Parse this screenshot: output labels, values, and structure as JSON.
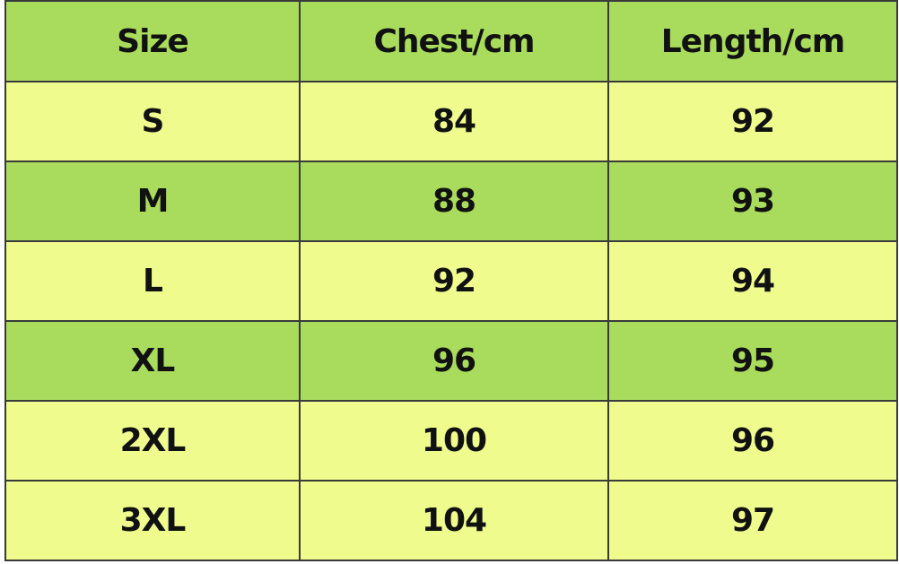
{
  "table": {
    "header": [
      "Size",
      "Chest/cm",
      "Length/cm"
    ],
    "rows": [
      [
        "S",
        84,
        92
      ],
      [
        "M",
        88,
        93
      ],
      [
        "L",
        92,
        94
      ],
      [
        "XL",
        96,
        95
      ],
      [
        "2XL",
        100,
        96
      ],
      [
        "3XL",
        104,
        97
      ]
    ]
  }
}
